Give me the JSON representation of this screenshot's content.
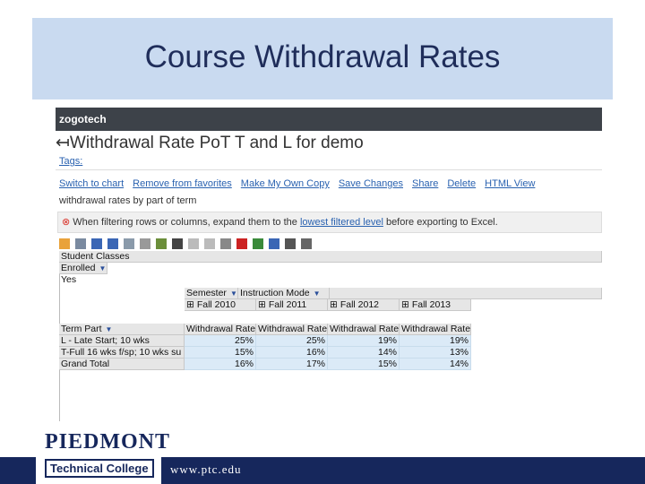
{
  "slide": {
    "title": "Course Withdrawal Rates",
    "footer_url": "www.ptc.edu",
    "logo": {
      "name": "PIEDMONT",
      "subtitle": "Technical College"
    }
  },
  "app": {
    "brand": "zogotech",
    "report_title": "Withdrawal Rate PoT T and L for demo",
    "tags_label": "Tags:",
    "actions": [
      "Switch to chart",
      "Remove from favorites",
      "Make My Own Copy",
      "Save Changes",
      "Share",
      "Delete",
      "HTML View"
    ],
    "description": "withdrawal rates by part of term",
    "warning": {
      "before": "When filtering rows or columns, expand them to the ",
      "link": "lowest filtered level",
      "after": " before exporting to Excel."
    }
  },
  "pivot": {
    "filter_field": "Student Classes",
    "filter_name": "Enrolled",
    "filter_value": "Yes",
    "column_fields": [
      "Semester",
      "Instruction Mode"
    ],
    "columns": [
      "Fall 2010",
      "Fall 2011",
      "Fall 2012",
      "Fall 2013"
    ],
    "row_field": "Term Part",
    "measure": "Withdrawal Rate",
    "rows": [
      {
        "label": "L - Late Start; 10 wks",
        "values": [
          "25%",
          "25%",
          "19%",
          "19%"
        ]
      },
      {
        "label": "T-Full 16 wks f/sp; 10 wks su",
        "values": [
          "15%",
          "16%",
          "14%",
          "13%"
        ]
      },
      {
        "label": "Grand Total",
        "values": [
          "16%",
          "17%",
          "15%",
          "14%"
        ]
      }
    ]
  }
}
